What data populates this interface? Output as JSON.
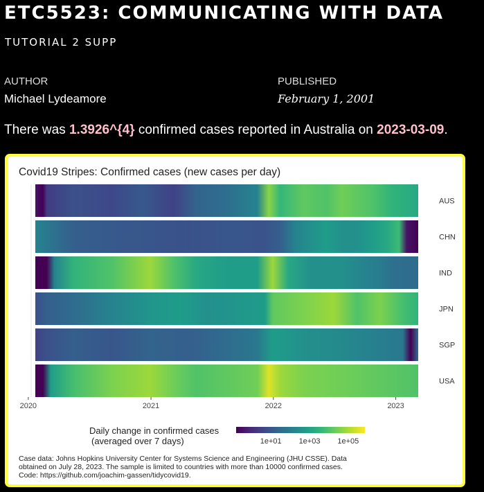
{
  "document": {
    "title": "ETC5523: COMMUNICATING WITH DATA",
    "subtitle": "TUTORIAL 2 SUPP",
    "author_heading": "AUTHOR",
    "author": "Michael Lydeamore",
    "published_heading": "PUBLISHED",
    "published": "February 1, 2001",
    "summary": {
      "prefix": "There was ",
      "cases": "1.3926^{4}",
      "middle": " confirmed cases reported in Australia on ",
      "date": "2023-03-09",
      "suffix": "."
    }
  },
  "colors": {
    "page_background": "#000000",
    "highlight": "#ffc0cb",
    "figure_border": "#ffff3d"
  },
  "chart_data": {
    "type": "heatmap",
    "title": "Covid19 Stripes: Confirmed cases (new cases per day)",
    "colormap": "viridis",
    "x_ticks": [
      "2020",
      "2021",
      "2022",
      "2023"
    ],
    "x_range": [
      "2020-01-22",
      "2023-03-09"
    ],
    "legend": {
      "title_line1": "Daily change in confirmed cases",
      "title_line2": "(averaged over 7 days)",
      "ticks": [
        "1e+01",
        "1e+03",
        "1e+05"
      ],
      "scale": "log10",
      "placement": "bottom"
    },
    "caption_lines": [
      "Case data: Johns Hopkins University Center for Systems Science and Engineering (JHU CSSE). Data",
      "obtained on July 28, 2023. The sample is limited to countries with more than 10000 confirmed cases.",
      "Code: https://github.com/joachim-gassen/tidycovid19."
    ],
    "series": [
      {
        "name": "AUS",
        "stops": [
          [
            0.0,
            0.05
          ],
          [
            0.02,
            0.0
          ],
          [
            0.03,
            0.18
          ],
          [
            0.1,
            0.25
          ],
          [
            0.2,
            0.22
          ],
          [
            0.28,
            0.28
          ],
          [
            0.36,
            0.2
          ],
          [
            0.42,
            0.32
          ],
          [
            0.5,
            0.36
          ],
          [
            0.58,
            0.45
          ],
          [
            0.61,
            0.82
          ],
          [
            0.64,
            0.66
          ],
          [
            0.7,
            0.75
          ],
          [
            0.76,
            0.72
          ],
          [
            0.8,
            0.78
          ],
          [
            0.88,
            0.72
          ],
          [
            0.93,
            0.65
          ],
          [
            1.0,
            0.6
          ]
        ]
      },
      {
        "name": "CHN",
        "stops": [
          [
            0.0,
            0.45
          ],
          [
            0.03,
            0.4
          ],
          [
            0.1,
            0.3
          ],
          [
            0.2,
            0.28
          ],
          [
            0.3,
            0.27
          ],
          [
            0.4,
            0.25
          ],
          [
            0.5,
            0.27
          ],
          [
            0.6,
            0.26
          ],
          [
            0.64,
            0.3
          ],
          [
            0.68,
            0.45
          ],
          [
            0.72,
            0.5
          ],
          [
            0.76,
            0.55
          ],
          [
            0.8,
            0.5
          ],
          [
            0.84,
            0.5
          ],
          [
            0.88,
            0.55
          ],
          [
            0.92,
            0.6
          ],
          [
            0.95,
            0.68
          ],
          [
            0.97,
            0.05
          ],
          [
            1.0,
            0.0
          ]
        ]
      },
      {
        "name": "IND",
        "stops": [
          [
            0.0,
            0.0
          ],
          [
            0.03,
            0.0
          ],
          [
            0.05,
            0.45
          ],
          [
            0.1,
            0.65
          ],
          [
            0.2,
            0.72
          ],
          [
            0.3,
            0.85
          ],
          [
            0.36,
            0.72
          ],
          [
            0.42,
            0.6
          ],
          [
            0.5,
            0.55
          ],
          [
            0.58,
            0.55
          ],
          [
            0.62,
            0.85
          ],
          [
            0.66,
            0.6
          ],
          [
            0.72,
            0.5
          ],
          [
            0.8,
            0.5
          ],
          [
            0.86,
            0.45
          ],
          [
            0.9,
            0.42
          ],
          [
            0.94,
            0.36
          ],
          [
            1.0,
            0.35
          ]
        ]
      },
      {
        "name": "JPN",
        "stops": [
          [
            0.0,
            0.25
          ],
          [
            0.03,
            0.3
          ],
          [
            0.1,
            0.35
          ],
          [
            0.2,
            0.45
          ],
          [
            0.3,
            0.52
          ],
          [
            0.38,
            0.55
          ],
          [
            0.45,
            0.5
          ],
          [
            0.52,
            0.52
          ],
          [
            0.6,
            0.55
          ],
          [
            0.62,
            0.75
          ],
          [
            0.7,
            0.8
          ],
          [
            0.78,
            0.85
          ],
          [
            0.84,
            0.72
          ],
          [
            0.9,
            0.8
          ],
          [
            0.96,
            0.7
          ],
          [
            1.0,
            0.65
          ]
        ]
      },
      {
        "name": "SGP",
        "stops": [
          [
            0.0,
            0.2
          ],
          [
            0.03,
            0.25
          ],
          [
            0.1,
            0.3
          ],
          [
            0.2,
            0.27
          ],
          [
            0.3,
            0.32
          ],
          [
            0.4,
            0.3
          ],
          [
            0.5,
            0.35
          ],
          [
            0.58,
            0.4
          ],
          [
            0.62,
            0.55
          ],
          [
            0.7,
            0.5
          ],
          [
            0.78,
            0.48
          ],
          [
            0.86,
            0.45
          ],
          [
            0.92,
            0.42
          ],
          [
            0.96,
            0.4
          ],
          [
            0.98,
            0.0
          ],
          [
            1.0,
            0.35
          ]
        ]
      },
      {
        "name": "USA",
        "stops": [
          [
            0.0,
            0.0
          ],
          [
            0.02,
            0.0
          ],
          [
            0.04,
            0.55
          ],
          [
            0.1,
            0.7
          ],
          [
            0.2,
            0.8
          ],
          [
            0.3,
            0.85
          ],
          [
            0.36,
            0.78
          ],
          [
            0.42,
            0.72
          ],
          [
            0.5,
            0.75
          ],
          [
            0.58,
            0.78
          ],
          [
            0.61,
            0.95
          ],
          [
            0.64,
            0.85
          ],
          [
            0.7,
            0.8
          ],
          [
            0.8,
            0.78
          ],
          [
            0.9,
            0.75
          ],
          [
            1.0,
            0.72
          ]
        ]
      }
    ]
  }
}
